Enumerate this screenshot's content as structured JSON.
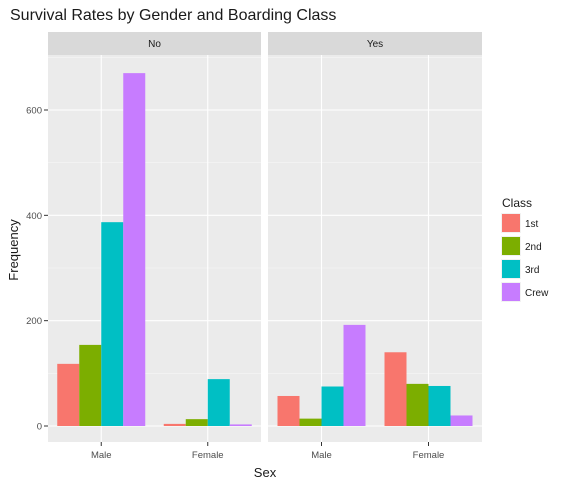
{
  "chart_data": {
    "type": "bar",
    "title": "Survival Rates by Gender and Boarding Class",
    "xlabel": "Sex",
    "ylabel": "Frequency",
    "categories": [
      "Male",
      "Female"
    ],
    "y_ticks": [
      "0",
      "200",
      "400",
      "600"
    ],
    "ylim": [
      0,
      720
    ],
    "grid": true,
    "legend_position": "right",
    "legend": {
      "title": "Class",
      "entries": [
        {
          "label": "1st",
          "color": "#F8766D"
        },
        {
          "label": "2nd",
          "color": "#7CAE00"
        },
        {
          "label": "3rd",
          "color": "#00BFC4"
        },
        {
          "label": "Crew",
          "color": "#C77CFF"
        }
      ]
    },
    "facets": [
      {
        "label": "No",
        "series": [
          {
            "name": "1st",
            "values": [
              118,
              4
            ]
          },
          {
            "name": "2nd",
            "values": [
              154,
              13
            ]
          },
          {
            "name": "3rd",
            "values": [
              387,
              89
            ]
          },
          {
            "name": "Crew",
            "values": [
              670,
              3
            ]
          }
        ]
      },
      {
        "label": "Yes",
        "series": [
          {
            "name": "1st",
            "values": [
              57,
              140
            ]
          },
          {
            "name": "2nd",
            "values": [
              14,
              80
            ]
          },
          {
            "name": "3rd",
            "values": [
              75,
              76
            ]
          },
          {
            "name": "Crew",
            "values": [
              192,
              20
            ]
          }
        ]
      }
    ]
  }
}
